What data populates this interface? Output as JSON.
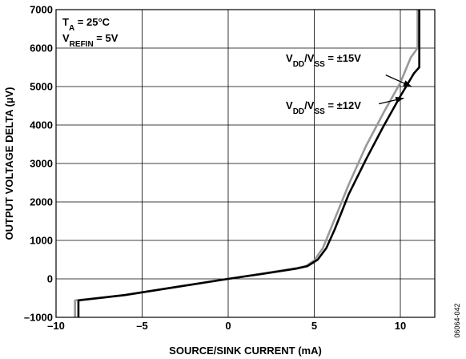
{
  "chart_data": {
    "type": "line",
    "xlabel": "SOURCE/SINK CURRENT (mA)",
    "ylabel": "OUTPUT VOLTAGE DELTA (µV)",
    "xlim": [
      -10,
      12
    ],
    "ylim": [
      -1000,
      7000
    ],
    "x_ticks": [
      -10,
      -5,
      0,
      5,
      10
    ],
    "y_ticks": [
      -1000,
      0,
      1000,
      2000,
      3000,
      4000,
      5000,
      6000,
      7000
    ],
    "x_tick_labels": [
      "–10",
      "–5",
      "0",
      "5",
      "10"
    ],
    "y_tick_labels": [
      "–1000",
      "0",
      "1000",
      "2000",
      "3000",
      "4000",
      "5000",
      "6000",
      "7000"
    ],
    "grid": true,
    "conditions": {
      "ta": {
        "main": "T",
        "sub": "A",
        "rest": " = 25°C"
      },
      "vrefin": {
        "main": "V",
        "sub": "REFIN",
        "rest": " = 5V"
      }
    },
    "series": [
      {
        "name": "VDD/VSS = ±15V",
        "color": "#999999",
        "x": [
          -8.9,
          -8.9,
          -6,
          -3,
          0,
          2,
          4,
          4.5,
          5,
          5.5,
          6,
          7,
          8,
          9,
          10,
          10.6,
          11.0,
          11.0
        ],
        "y": [
          -1000,
          -560,
          -420,
          -210,
          0,
          140,
          280,
          330,
          480,
          800,
          1350,
          2450,
          3450,
          4300,
          5100,
          5750,
          6000,
          7000
        ]
      },
      {
        "name": "VDD/VSS = ±12V",
        "color": "#000000",
        "x": [
          -8.7,
          -8.7,
          -6,
          -3,
          0,
          2,
          4,
          4.6,
          5.2,
          5.7,
          6.2,
          7,
          8,
          9,
          10,
          10.8,
          11.1,
          11.1
        ],
        "y": [
          -1000,
          -560,
          -420,
          -210,
          0,
          130,
          270,
          330,
          500,
          800,
          1300,
          2200,
          3100,
          3950,
          4750,
          5350,
          5500,
          7000
        ]
      }
    ],
    "annotations": [
      {
        "label": {
          "main1": "V",
          "sub1": "DD",
          "slash": "/V",
          "sub2": "SS",
          "rest": " = ±15V"
        },
        "text_x": 3.35,
        "text_y": 5650,
        "arrow_from": [
          9.15,
          5300
        ],
        "arrow_to": [
          10.65,
          5000
        ]
      },
      {
        "label": {
          "main1": "V",
          "sub1": "DD",
          "slash": "/V",
          "sub2": "SS",
          "rest": " = ±12V"
        },
        "text_x": 3.35,
        "text_y": 4420,
        "arrow_from": [
          8.75,
          4550
        ],
        "arrow_to": [
          10.2,
          4700
        ]
      }
    ],
    "figure_id": "06064-042"
  }
}
